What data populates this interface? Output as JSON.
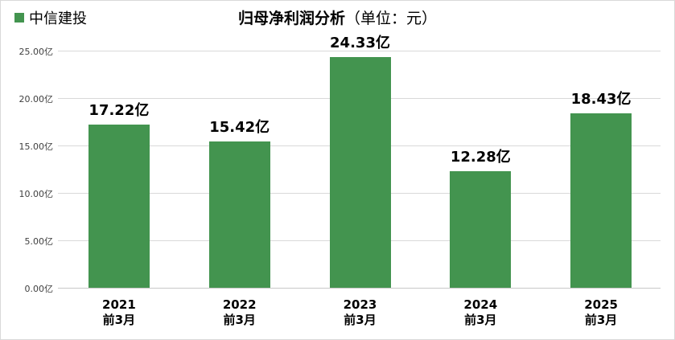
{
  "legend": {
    "label": "中信建投",
    "color": "#43944f"
  },
  "title": {
    "main": "归母净利润分析",
    "unit": "（单位：元）"
  },
  "chart_data": {
    "type": "bar",
    "title": "归母净利润分析（单位：元）",
    "xlabel": "",
    "ylabel": "",
    "categories": [
      "2021 前3月",
      "2022 前3月",
      "2023 前3月",
      "2024 前3月",
      "2025 前3月"
    ],
    "series": [
      {
        "name": "中信建投",
        "color": "#43944f",
        "values": [
          17.22,
          15.42,
          24.33,
          12.28,
          18.43
        ]
      }
    ],
    "data_labels": [
      "17.22亿",
      "15.42亿",
      "24.33亿",
      "12.28亿",
      "18.43亿"
    ],
    "ylim": [
      0,
      25
    ],
    "yticks": [
      "0.00亿",
      "5.00亿",
      "10.00亿",
      "15.00亿",
      "20.00亿",
      "25.00亿"
    ],
    "grid": true,
    "legend_position": "top-left",
    "unit": "亿"
  },
  "xaxis": [
    {
      "year": "2021",
      "period": "前3月"
    },
    {
      "year": "2022",
      "period": "前3月"
    },
    {
      "year": "2023",
      "period": "前3月"
    },
    {
      "year": "2024",
      "period": "前3月"
    },
    {
      "year": "2025",
      "period": "前3月"
    }
  ]
}
